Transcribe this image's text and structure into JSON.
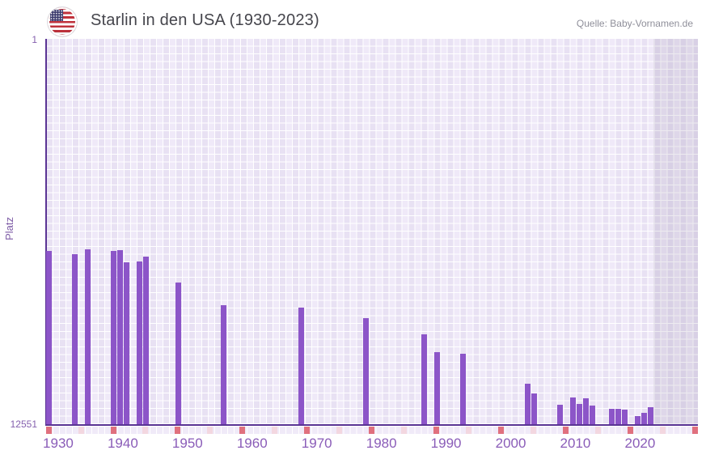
{
  "header": {
    "flag_icon": "us-flag-icon",
    "title": "Starlin in den USA (1930-2023)",
    "source": "Quelle: Baby-Vornamen.de"
  },
  "chart_data": {
    "type": "bar",
    "title": "Starlin in den USA (1930-2023)",
    "xlabel": "",
    "ylabel": "Platz",
    "y_axis": {
      "top_tick": "1",
      "bottom_tick": "12551",
      "min": 1,
      "max": 12551,
      "inverted": true
    },
    "x_axis": {
      "ticks": [
        1930,
        1940,
        1950,
        1960,
        1970,
        1980,
        1990,
        2000,
        2010,
        2020
      ],
      "grid_start": 1930,
      "grid_end": 2030,
      "data_start": 1930,
      "data_end": 2023
    },
    "grid": "on",
    "legend": "none",
    "future_region": {
      "start": 2024,
      "end": 2030
    },
    "series": [
      {
        "name": "Platz von Starlin in den USA",
        "points": [
          {
            "year": 1930,
            "platz": 6920
          },
          {
            "year": 1934,
            "platz": 7010
          },
          {
            "year": 1936,
            "platz": 6855
          },
          {
            "year": 1940,
            "platz": 6900
          },
          {
            "year": 1941,
            "platz": 6875
          },
          {
            "year": 1942,
            "platz": 7280
          },
          {
            "year": 1944,
            "platz": 7250
          },
          {
            "year": 1945,
            "platz": 7105
          },
          {
            "year": 1950,
            "platz": 7930
          },
          {
            "year": 1957,
            "platz": 8685
          },
          {
            "year": 1969,
            "platz": 8745
          },
          {
            "year": 1979,
            "platz": 9095
          },
          {
            "year": 1988,
            "platz": 9615
          },
          {
            "year": 1990,
            "platz": 10195
          },
          {
            "year": 1994,
            "platz": 10265
          },
          {
            "year": 2004,
            "platz": 11220
          },
          {
            "year": 2005,
            "platz": 11540
          },
          {
            "year": 2009,
            "platz": 11925
          },
          {
            "year": 2011,
            "platz": 11675
          },
          {
            "year": 2012,
            "platz": 11905
          },
          {
            "year": 2013,
            "platz": 11695
          },
          {
            "year": 2014,
            "platz": 11940
          },
          {
            "year": 2017,
            "platz": 12055
          },
          {
            "year": 2018,
            "platz": 12055
          },
          {
            "year": 2019,
            "platz": 12080
          },
          {
            "year": 2021,
            "platz": 12300
          },
          {
            "year": 2022,
            "platz": 12195
          },
          {
            "year": 2023,
            "platz": 11990
          }
        ]
      }
    ],
    "colors": {
      "bar": "#8c55c8",
      "axis": "#5a3494",
      "x_tick_label": "#8a5cb8",
      "y_tick_label": "#8560ae",
      "grid_cell": "#efe9f8",
      "grid_line": "#ffffff",
      "future_shade": "rgba(93,80,125,0.115)",
      "decade_marker": "#e0707e",
      "half_decade_marker": "#f3d7e0"
    }
  }
}
